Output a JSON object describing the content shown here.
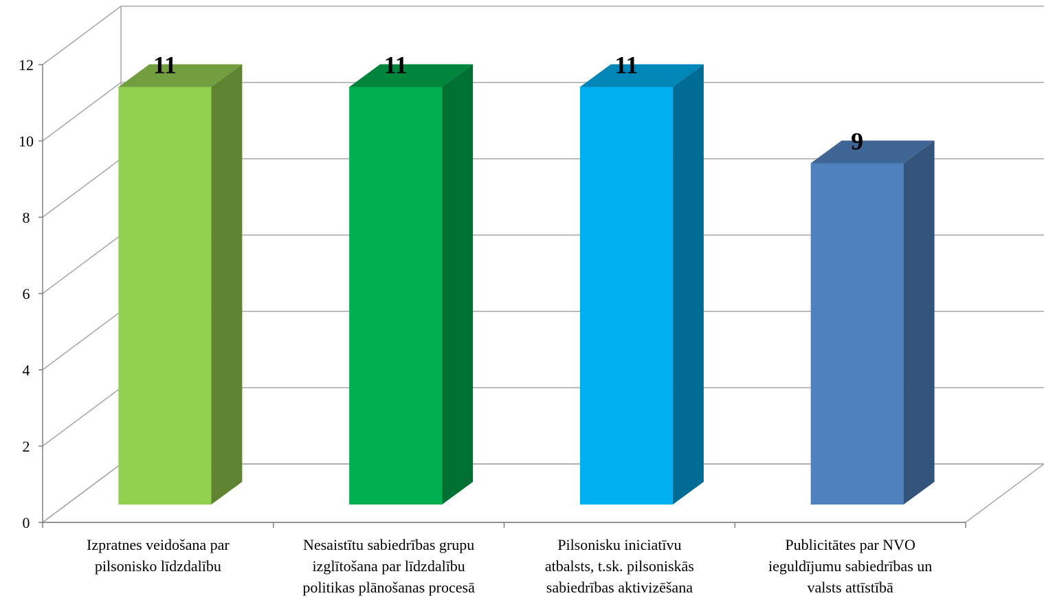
{
  "chart_data": {
    "type": "bar",
    "style": "3d-column",
    "categories": [
      [
        "Izpratnes veidošana par",
        "pilsonisko līdzdalību"
      ],
      [
        "Nesaistītu sabiedrības grupu",
        "izglītošana par līdzdalību",
        "politikas plānošanas procesā"
      ],
      [
        "Pilsonisku iniciatīvu",
        "atbalsts, t.sk. pilsoniskās",
        "sabiedrības aktivizēšana"
      ],
      [
        "Publicitātes  par NVO",
        "ieguldījumu sabiedrības un",
        "valsts attīstībā"
      ]
    ],
    "values": [
      11,
      11,
      11,
      9
    ],
    "value_labels": [
      "11",
      "11",
      "11",
      "9"
    ],
    "ylim": [
      0,
      12
    ],
    "yticks": [
      "0",
      "2",
      "4",
      "6",
      "8",
      "10",
      "12"
    ],
    "grid": true,
    "colors": {
      "bars": [
        {
          "front": "#92d050",
          "side": "#5f8431",
          "top": "#729e3f"
        },
        {
          "front": "#00b050",
          "side": "#006f32",
          "top": "#00853d"
        },
        {
          "front": "#00b0f0",
          "side": "#006b94",
          "top": "#0087b8"
        },
        {
          "front": "#4f81bd",
          "side": "#33537b",
          "top": "#3f6594"
        }
      ],
      "grid": "#a6a6a6",
      "axis": "#808080"
    }
  }
}
